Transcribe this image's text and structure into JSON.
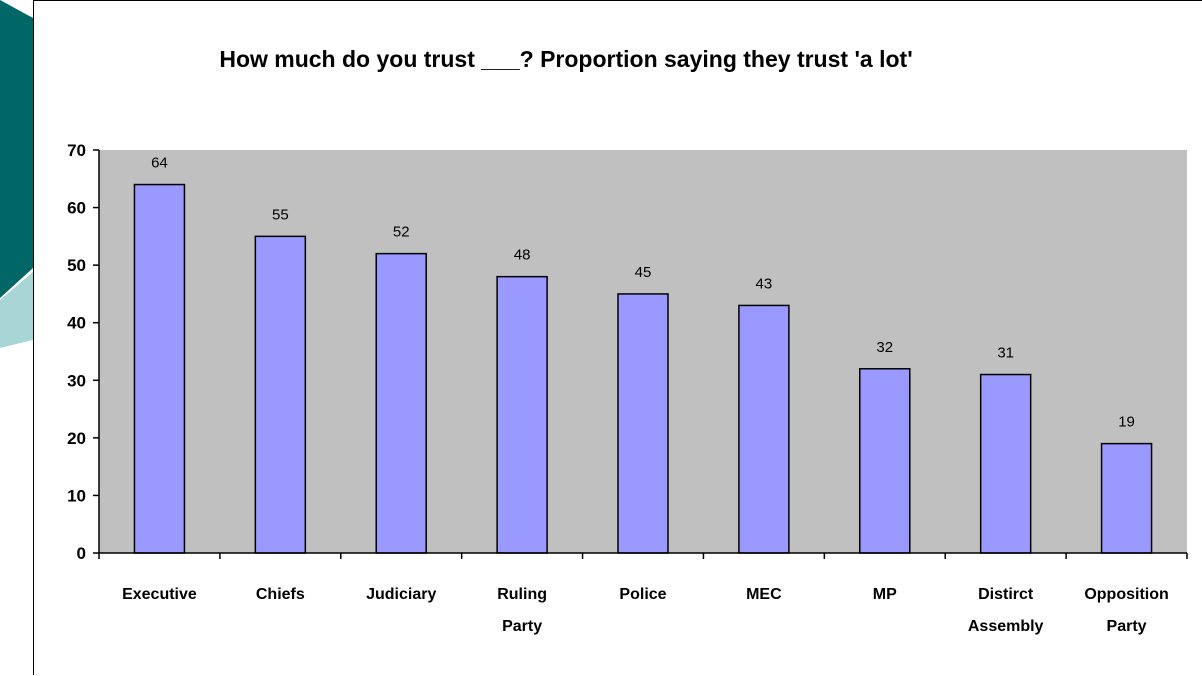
{
  "chart_data": {
    "type": "bar",
    "title": "How much do you trust ___? Proportion saying they trust 'a lot'",
    "categories": [
      [
        "Executive"
      ],
      [
        "Chiefs"
      ],
      [
        "Judiciary"
      ],
      [
        "Ruling",
        "Party"
      ],
      [
        "Police"
      ],
      [
        "MEC"
      ],
      [
        "MP"
      ],
      [
        "Distirct",
        "Assembly"
      ],
      [
        "Opposition",
        "Party"
      ]
    ],
    "values": [
      64,
      55,
      52,
      48,
      45,
      43,
      32,
      31,
      19
    ],
    "data_labels": [
      "64",
      "55",
      "52",
      "48",
      "45",
      "43",
      "32",
      "31",
      "19"
    ],
    "ylim": [
      0,
      70
    ],
    "yticks": [
      0,
      10,
      20,
      30,
      40,
      50,
      60,
      70
    ],
    "grid": false,
    "colors": {
      "bar_fill": "#9999ff",
      "plot_background": "#c0c0c0",
      "deco_dark": "#006666",
      "deco_light": "#a8d5d5"
    }
  }
}
